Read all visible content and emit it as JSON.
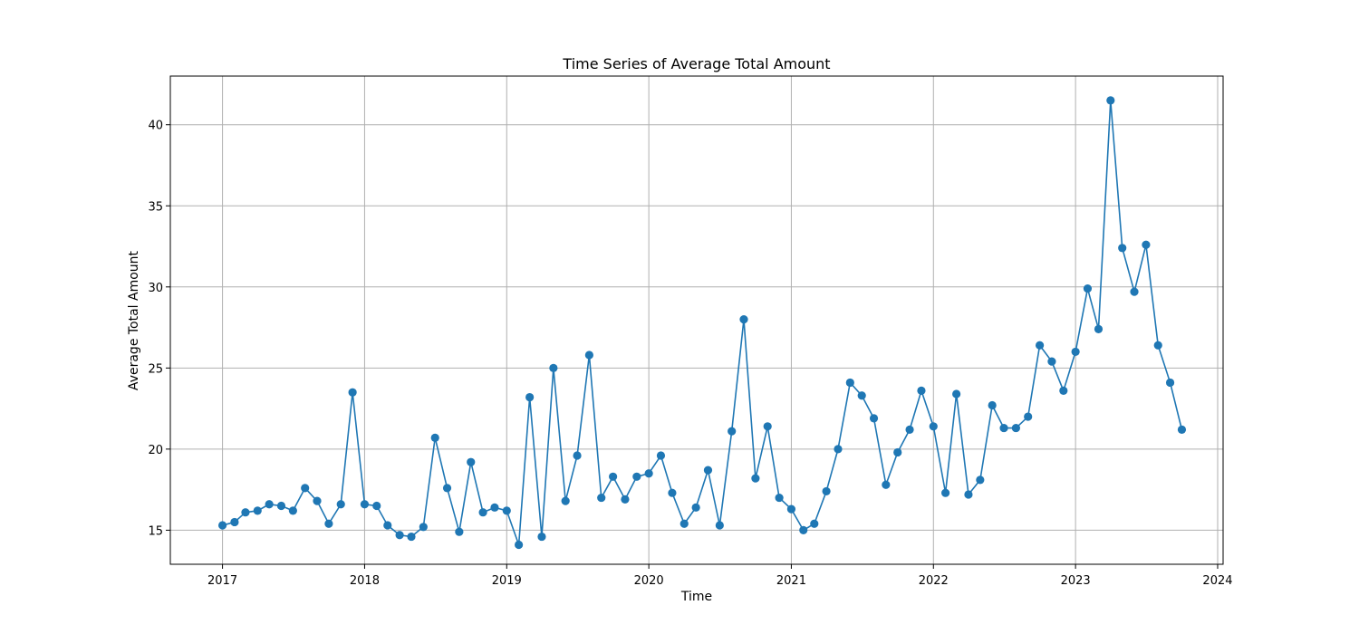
{
  "chart_data": {
    "type": "line",
    "title": "Time Series of Average Total Amount",
    "xlabel": "Time",
    "ylabel": "Average Total Amount",
    "x_start": "2017-01",
    "x_step": "month",
    "xlim": [
      "2016-08-20",
      "2024-01-15"
    ],
    "ylim": [
      12.9,
      43.0
    ],
    "xticks": [
      {
        "value": "2017-01-01",
        "label": "2017"
      },
      {
        "value": "2018-01-01",
        "label": "2018"
      },
      {
        "value": "2019-01-01",
        "label": "2019"
      },
      {
        "value": "2020-01-01",
        "label": "2020"
      },
      {
        "value": "2021-01-01",
        "label": "2021"
      },
      {
        "value": "2022-01-01",
        "label": "2022"
      },
      {
        "value": "2023-01-01",
        "label": "2023"
      },
      {
        "value": "2024-01-01",
        "label": "2024"
      }
    ],
    "yticks": [
      {
        "value": 15,
        "label": "15"
      },
      {
        "value": 20,
        "label": "20"
      },
      {
        "value": 25,
        "label": "25"
      },
      {
        "value": 30,
        "label": "30"
      },
      {
        "value": 35,
        "label": "35"
      },
      {
        "value": 40,
        "label": "40"
      }
    ],
    "grid": true,
    "series": [
      {
        "color": "#1f77b4",
        "marker": "circle",
        "values": [
          15.3,
          15.5,
          16.1,
          16.2,
          16.6,
          16.5,
          16.2,
          17.6,
          16.8,
          15.4,
          16.6,
          23.5,
          16.6,
          16.5,
          15.3,
          14.7,
          14.6,
          15.2,
          20.7,
          17.6,
          14.9,
          19.2,
          16.1,
          16.4,
          16.2,
          14.1,
          23.2,
          14.6,
          25.0,
          16.8,
          19.6,
          25.8,
          17.0,
          18.3,
          16.9,
          18.3,
          18.5,
          19.6,
          17.3,
          15.4,
          16.4,
          18.7,
          15.3,
          21.1,
          28.0,
          18.2,
          21.4,
          17.0,
          16.3,
          15.0,
          15.4,
          17.4,
          20.0,
          24.1,
          23.3,
          21.9,
          17.8,
          19.8,
          21.2,
          23.6,
          21.4,
          17.3,
          23.4,
          17.2,
          18.1,
          22.7,
          21.3,
          21.3,
          22.0,
          26.4,
          25.4,
          23.6,
          26.0,
          29.9,
          27.4,
          41.5,
          32.4,
          29.7,
          32.6,
          26.4,
          24.1,
          21.2
        ]
      }
    ]
  }
}
